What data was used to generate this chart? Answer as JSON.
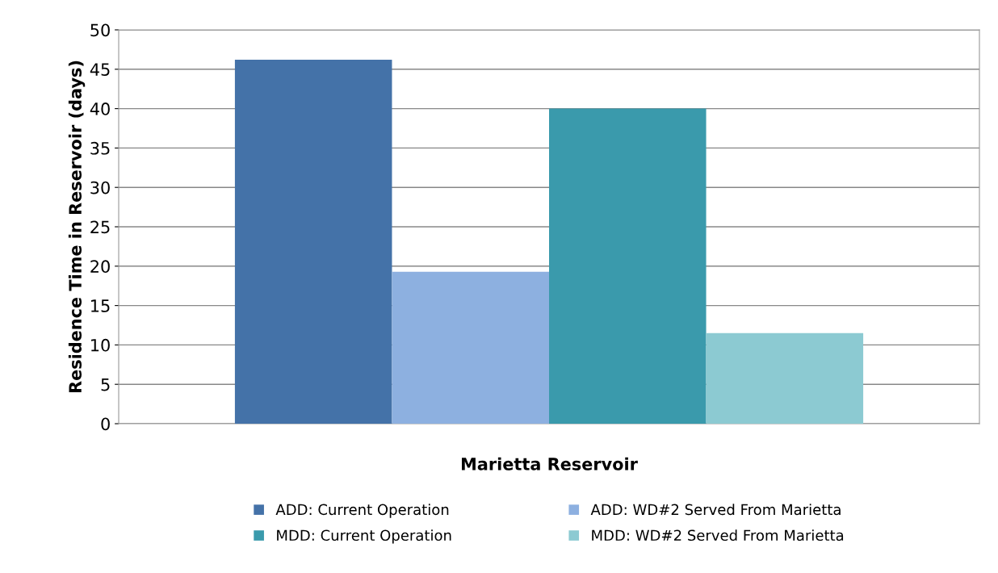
{
  "chart_data": {
    "type": "bar",
    "ylabel": "Residence Time in Reservoir (days)",
    "categories": [
      "Marietta Reservoir"
    ],
    "series": [
      {
        "name": "ADD: Current Operation",
        "color": "#4472a8",
        "values": [
          46.2
        ]
      },
      {
        "name": "ADD: WD#2 Served From Marietta",
        "color": "#8db0e0",
        "values": [
          19.3
        ]
      },
      {
        "name": "MDD: Current Operation",
        "color": "#3a9aac",
        "values": [
          40
        ]
      },
      {
        "name": "MDD: WD#2 Served From Marietta",
        "color": "#8ccad2",
        "values": [
          11.5
        ]
      }
    ],
    "ylim": [
      0,
      50
    ],
    "yticks": [
      0,
      5,
      10,
      15,
      20,
      25,
      30,
      35,
      40,
      45,
      50
    ],
    "grid": "y",
    "legend": "bottom"
  }
}
